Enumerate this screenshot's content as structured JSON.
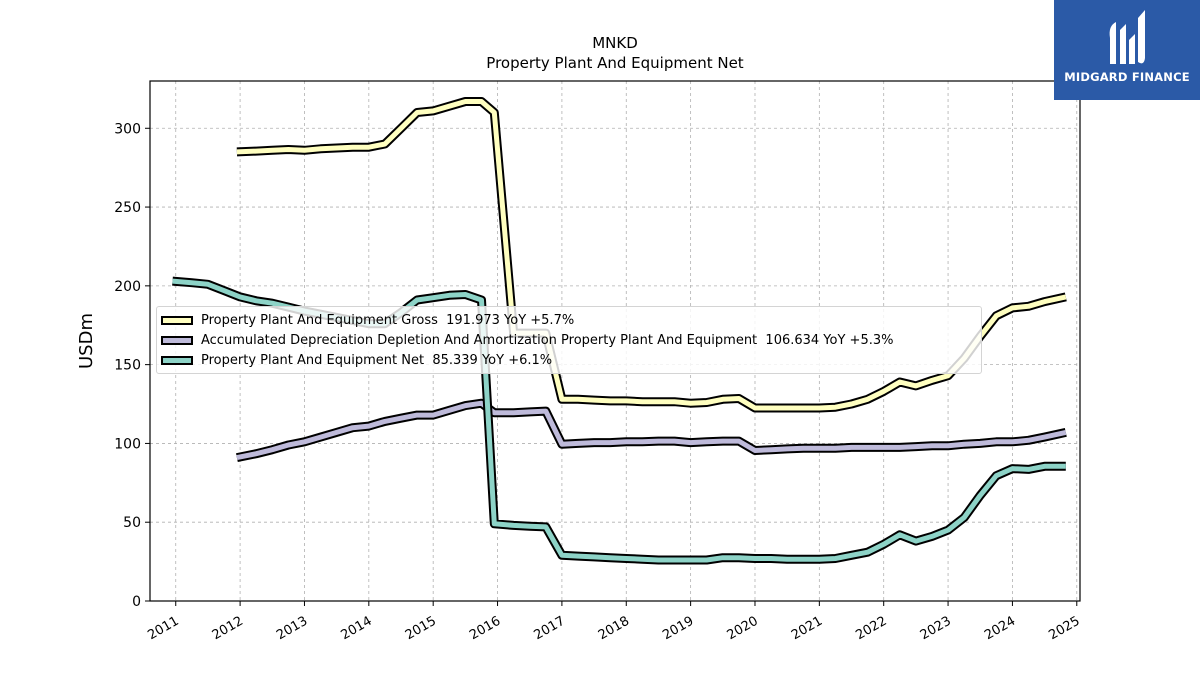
{
  "brand": {
    "name": "MIDGARD FINANCE",
    "bg_color": "#2b5aa7"
  },
  "chart_data": {
    "type": "line",
    "title": "MNKD",
    "subtitle": "Property Plant And Equipment Net",
    "xlabel": "",
    "ylabel": "USDm",
    "ylim": [
      0,
      330
    ],
    "xlim": [
      2010.6,
      2025.05
    ],
    "yticks": [
      "0",
      "50",
      "100",
      "150",
      "200",
      "250",
      "300"
    ],
    "xticks": [
      "2011",
      "2012",
      "2013",
      "2014",
      "2015",
      "2016",
      "2017",
      "2018",
      "2019",
      "2020",
      "2021",
      "2022",
      "2023",
      "2024",
      "2025"
    ],
    "grid": true,
    "legend_position": "center-left",
    "series": [
      {
        "name": "Property Plant And Equipment Gross",
        "legend": "Property Plant And Equipment Gross  191.973 YoY +5.7%",
        "color": "#ffffc0",
        "x": [
          2011.95,
          2012.25,
          2012.5,
          2012.75,
          2013.0,
          2013.25,
          2013.5,
          2013.75,
          2014.0,
          2014.25,
          2014.5,
          2014.75,
          2015.0,
          2015.25,
          2015.5,
          2015.75,
          2015.95,
          2016.25,
          2016.5,
          2016.75,
          2017.0,
          2017.25,
          2017.5,
          2017.75,
          2018.0,
          2018.25,
          2018.5,
          2018.75,
          2019.0,
          2019.25,
          2019.5,
          2019.75,
          2020.0,
          2020.25,
          2020.5,
          2020.75,
          2021.0,
          2021.25,
          2021.5,
          2021.75,
          2022.0,
          2022.25,
          2022.5,
          2022.75,
          2023.0,
          2023.25,
          2023.5,
          2023.75,
          2024.0,
          2024.25,
          2024.5,
          2024.83
        ],
        "y": [
          285,
          285.5,
          286,
          286.5,
          286,
          287,
          287.5,
          288,
          288,
          290,
          300,
          310,
          311,
          314,
          317,
          317,
          310,
          170,
          170,
          170,
          128,
          128,
          127.5,
          127,
          127,
          126.5,
          126.5,
          126.5,
          125.5,
          126,
          128,
          128.5,
          122.5,
          122.5,
          122.5,
          122.5,
          122.5,
          123,
          125,
          128,
          133,
          139,
          136.5,
          140,
          143,
          154,
          168,
          181,
          186,
          187,
          190,
          193
        ]
      },
      {
        "name": "Accumulated Depreciation Depletion And Amortization Property Plant And Equipment",
        "legend": "Accumulated Depreciation Depletion And Amortization Property Plant And Equipment  106.634 YoY +5.3%",
        "color": "#bebada",
        "x": [
          2011.95,
          2012.25,
          2012.5,
          2012.75,
          2013.0,
          2013.25,
          2013.5,
          2013.75,
          2014.0,
          2014.25,
          2014.5,
          2014.75,
          2015.0,
          2015.25,
          2015.5,
          2015.75,
          2015.95,
          2016.25,
          2016.5,
          2016.75,
          2017.0,
          2017.25,
          2017.5,
          2017.75,
          2018.0,
          2018.25,
          2018.5,
          2018.75,
          2019.0,
          2019.25,
          2019.5,
          2019.75,
          2020.0,
          2020.25,
          2020.5,
          2020.75,
          2021.0,
          2021.25,
          2021.5,
          2021.75,
          2022.0,
          2022.25,
          2022.5,
          2022.75,
          2023.0,
          2023.25,
          2023.5,
          2023.75,
          2024.0,
          2024.25,
          2024.5,
          2024.83
        ],
        "y": [
          91,
          93.5,
          96,
          99,
          101,
          104,
          107,
          110,
          111,
          114,
          116,
          118,
          118,
          121,
          124,
          125.5,
          119.5,
          119.5,
          120,
          120.5,
          99.5,
          100,
          100.5,
          100.5,
          101,
          101,
          101.5,
          101.5,
          100.5,
          101,
          101.5,
          101.5,
          95.5,
          96,
          96.5,
          97,
          97,
          97,
          97.5,
          97.5,
          97.5,
          97.5,
          98,
          98.5,
          98.5,
          99.5,
          100,
          101,
          101,
          102,
          104,
          107
        ]
      },
      {
        "name": "Property Plant And Equipment Net",
        "legend": "Property Plant And Equipment Net  85.339 YoY +6.1%",
        "color": "#8dd3c7",
        "x": [
          2010.95,
          2011.25,
          2011.5,
          2011.75,
          2012.0,
          2012.25,
          2012.5,
          2012.75,
          2013.0,
          2013.25,
          2013.5,
          2013.75,
          2014.0,
          2014.25,
          2014.5,
          2014.75,
          2015.0,
          2015.25,
          2015.5,
          2015.75,
          2015.95,
          2016.25,
          2016.5,
          2016.75,
          2017.0,
          2017.25,
          2017.5,
          2017.75,
          2018.0,
          2018.25,
          2018.5,
          2018.75,
          2019.0,
          2019.25,
          2019.5,
          2019.75,
          2020.0,
          2020.25,
          2020.5,
          2020.75,
          2021.0,
          2021.25,
          2021.5,
          2021.75,
          2022.0,
          2022.25,
          2022.5,
          2022.75,
          2023.0,
          2023.25,
          2023.5,
          2023.75,
          2024.0,
          2024.25,
          2024.5,
          2024.83
        ],
        "y": [
          203,
          202,
          201,
          197,
          193,
          190.5,
          189,
          186.5,
          184,
          182,
          180,
          178,
          176,
          176,
          183,
          191,
          192.5,
          194,
          194.5,
          191,
          49,
          48,
          47.5,
          47,
          29,
          28.5,
          28,
          27.5,
          27,
          26.5,
          26,
          26,
          26,
          26,
          27.5,
          27.5,
          27,
          27,
          26.5,
          26.5,
          26.5,
          27,
          29,
          31,
          36,
          42,
          38,
          41,
          45,
          53,
          67,
          79.5,
          84,
          83.5,
          85.5,
          85.5
        ]
      }
    ]
  }
}
